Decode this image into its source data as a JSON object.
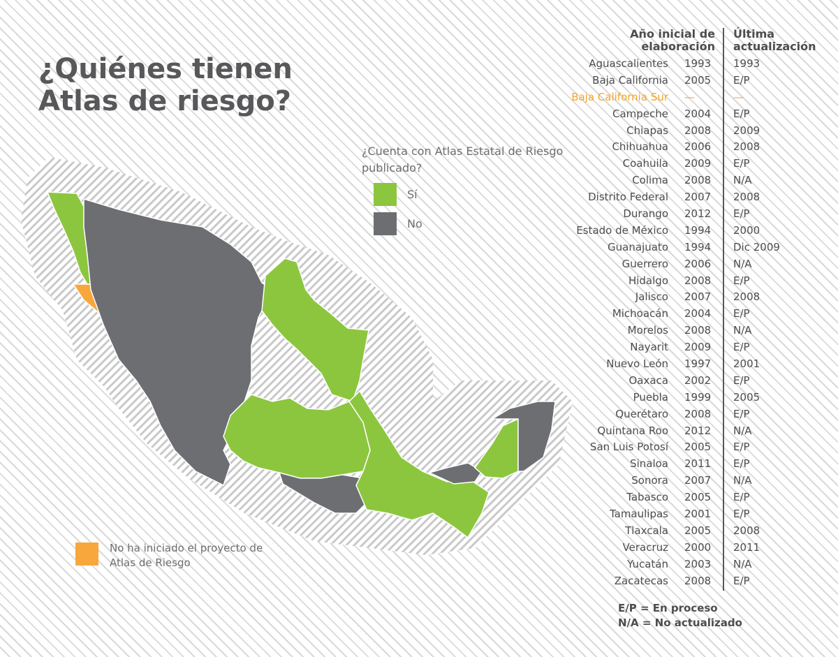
{
  "title": {
    "line1": "¿Quiénes tienen",
    "line2": "Atlas de riesgo?"
  },
  "legend": {
    "question": "¿Cuenta con Atlas Estatal de Riesgo publicado?",
    "yes_label": "Sí",
    "no_label": "No",
    "not_started_label": "No ha iniciado el proyecto de Atlas de Riesgo",
    "colors": {
      "yes": "#8cc63f",
      "no": "#6d6e71",
      "not_started": "#f7a73b"
    }
  },
  "table": {
    "header_initial": "Año inicial de elaboración",
    "header_update": "Última actualización",
    "rows": [
      {
        "state": "Aguascalientes",
        "year": "1993",
        "update": "1993"
      },
      {
        "state": "Baja California",
        "year": "2005",
        "update": "E/P"
      },
      {
        "state": "Baja California Sur",
        "year": "—",
        "update": "—",
        "highlight": true
      },
      {
        "state": "Campeche",
        "year": "2004",
        "update": "E/P"
      },
      {
        "state": "Chiapas",
        "year": "2008",
        "update": "2009"
      },
      {
        "state": "Chihuahua",
        "year": "2006",
        "update": "2008"
      },
      {
        "state": "Coahuila",
        "year": "2009",
        "update": "E/P"
      },
      {
        "state": "Colima",
        "year": "2008",
        "update": "N/A"
      },
      {
        "state": "Distrito Federal",
        "year": "2007",
        "update": "2008"
      },
      {
        "state": "Durango",
        "year": "2012",
        "update": "E/P"
      },
      {
        "state": "Estado de México",
        "year": "1994",
        "update": "2000"
      },
      {
        "state": "Guanajuato",
        "year": "1994",
        "update": "Dic 2009"
      },
      {
        "state": "Guerrero",
        "year": "2006",
        "update": "N/A"
      },
      {
        "state": "Hidalgo",
        "year": "2008",
        "update": "E/P"
      },
      {
        "state": "Jalisco",
        "year": "2007",
        "update": "2008"
      },
      {
        "state": "Michoacán",
        "year": "2004",
        "update": "E/P"
      },
      {
        "state": "Morelos",
        "year": "2008",
        "update": "N/A"
      },
      {
        "state": "Nayarit",
        "year": "2009",
        "update": "E/P"
      },
      {
        "state": "Nuevo León",
        "year": "1997",
        "update": "2001"
      },
      {
        "state": "Oaxaca",
        "year": "2002",
        "update": "E/P"
      },
      {
        "state": "Puebla",
        "year": "1999",
        "update": "2005"
      },
      {
        "state": "Querétaro",
        "year": "2008",
        "update": "E/P"
      },
      {
        "state": "Quintana Roo",
        "year": "2012",
        "update": "N/A"
      },
      {
        "state": "San Luis Potosí",
        "year": "2005",
        "update": "E/P"
      },
      {
        "state": "Sinaloa",
        "year": "2011",
        "update": "E/P"
      },
      {
        "state": "Sonora",
        "year": "2007",
        "update": "N/A"
      },
      {
        "state": "Tabasco",
        "year": "2005",
        "update": "E/P"
      },
      {
        "state": "Tamaulipas",
        "year": "2001",
        "update": "E/P"
      },
      {
        "state": "Tlaxcala",
        "year": "2005",
        "update": "2008"
      },
      {
        "state": "Veracruz",
        "year": "2000",
        "update": "2011"
      },
      {
        "state": "Yucatán",
        "year": "2003",
        "update": "N/A"
      },
      {
        "state": "Zacatecas",
        "year": "2008",
        "update": "E/P"
      }
    ]
  },
  "notes": {
    "ep": "E/P = En proceso",
    "na": "N/A = No actualizado"
  }
}
